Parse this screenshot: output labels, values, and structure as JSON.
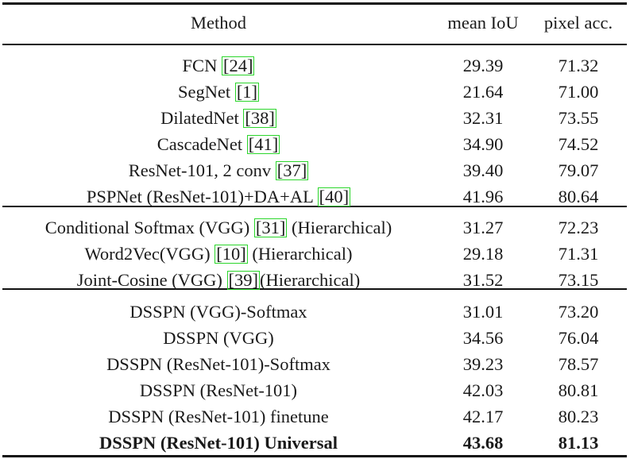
{
  "header": {
    "method": "Method",
    "miou": "mean IoU",
    "pacc": "pixel acc."
  },
  "groups": [
    {
      "rows": [
        {
          "pre": "FCN ",
          "ref": "[24]",
          "post": "",
          "miou": "29.39",
          "pacc": "71.32"
        },
        {
          "pre": "SegNet ",
          "ref": "[1]",
          "post": "",
          "miou": "21.64",
          "pacc": "71.00"
        },
        {
          "pre": "DilatedNet ",
          "ref": "[38]",
          "post": "",
          "miou": "32.31",
          "pacc": "73.55"
        },
        {
          "pre": "CascadeNet ",
          "ref": "[41]",
          "post": "",
          "miou": "34.90",
          "pacc": "74.52"
        },
        {
          "pre": "ResNet-101, 2 conv ",
          "ref": "[37]",
          "post": "",
          "miou": "39.40",
          "pacc": "79.07"
        },
        {
          "pre": "PSPNet (ResNet-101)+DA+AL ",
          "ref": "[40]",
          "post": "",
          "miou": "41.96",
          "pacc": "80.64"
        }
      ]
    },
    {
      "rows": [
        {
          "pre": "Conditional Softmax (VGG) ",
          "ref": "[31]",
          "post": " (Hierarchical)",
          "miou": "31.27",
          "pacc": "72.23"
        },
        {
          "pre": "Word2Vec(VGG) ",
          "ref": "[10]",
          "post": " (Hierarchical)",
          "miou": "29.18",
          "pacc": "71.31"
        },
        {
          "pre": "Joint-Cosine (VGG) ",
          "ref": "[39]",
          "post": "(Hierarchical)",
          "miou": "31.52",
          "pacc": "73.15"
        }
      ]
    },
    {
      "rows": [
        {
          "pre": "DSSPN (VGG)-Softmax",
          "ref": "",
          "post": "",
          "miou": "31.01",
          "pacc": "73.20"
        },
        {
          "pre": "DSSPN (VGG)",
          "ref": "",
          "post": "",
          "miou": "34.56",
          "pacc": "76.04"
        },
        {
          "pre": "DSSPN (ResNet-101)-Softmax",
          "ref": "",
          "post": "",
          "miou": "39.23",
          "pacc": "78.57"
        },
        {
          "pre": "DSSPN (ResNet-101)",
          "ref": "",
          "post": "",
          "miou": "42.03",
          "pacc": "80.81"
        },
        {
          "pre": "DSSPN (ResNet-101) finetune",
          "ref": "",
          "post": "",
          "miou": "42.17",
          "pacc": "80.23"
        },
        {
          "pre": "DSSPN (ResNet-101) Universal",
          "ref": "",
          "post": "",
          "miou": "43.68",
          "pacc": "81.13",
          "bold": true
        }
      ]
    }
  ]
}
